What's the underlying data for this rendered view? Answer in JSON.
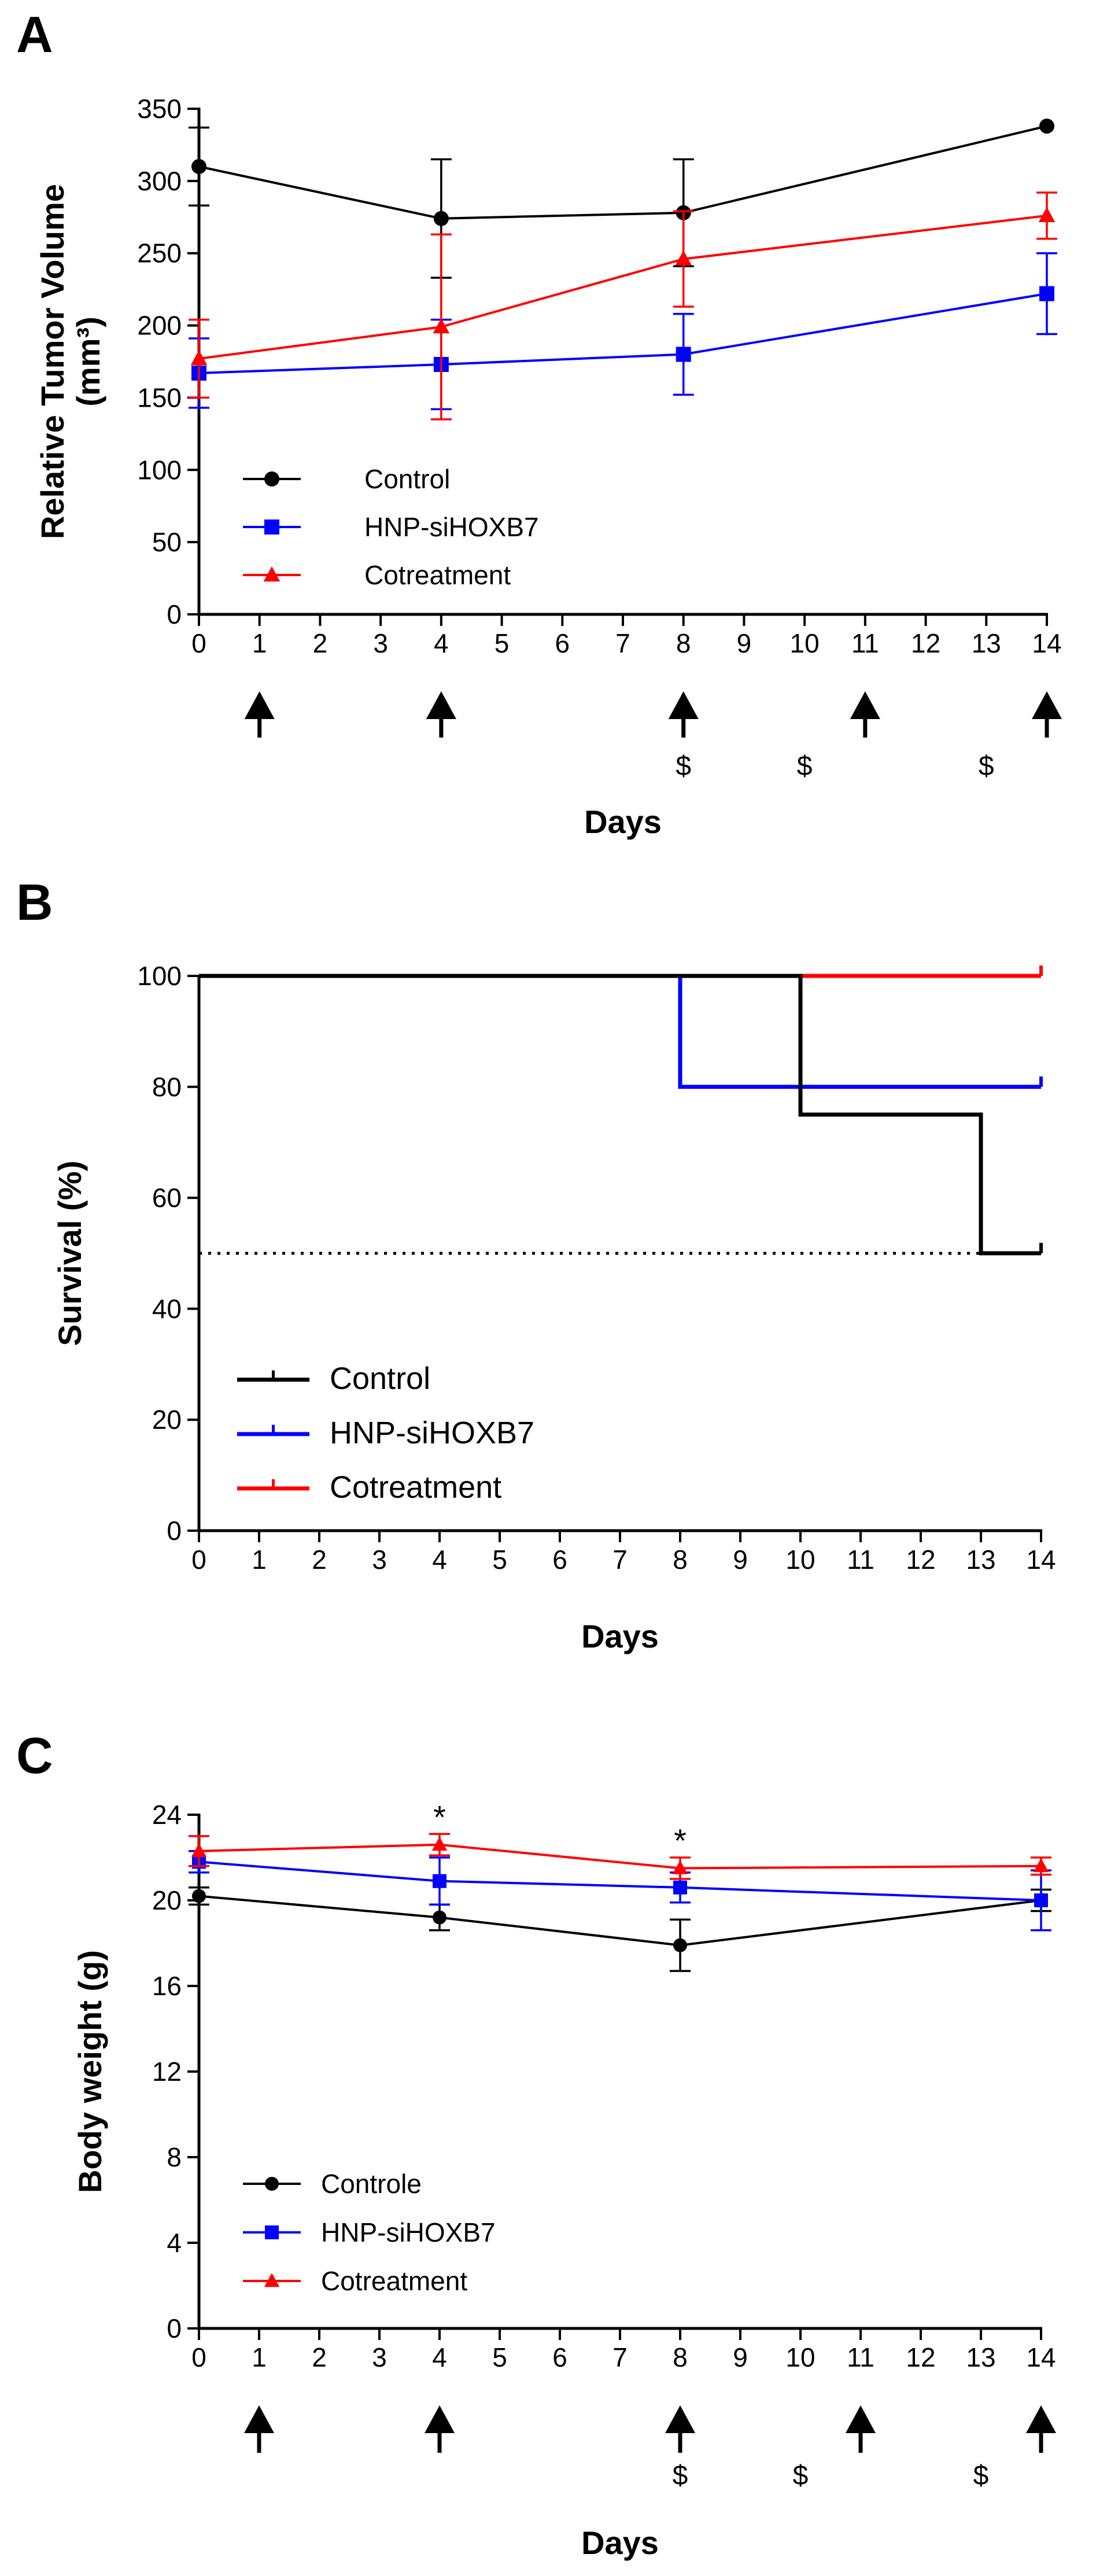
{
  "colors": {
    "control": "#000000",
    "hnp": "#0000ff",
    "cotreatment": "#ff0000"
  },
  "chart_data": [
    {
      "panel": "A",
      "type": "line",
      "title": "",
      "xlabel": "Days",
      "ylabel": [
        "Relative Tumor Volume",
        "(mm³)"
      ],
      "xlim": [
        0,
        14
      ],
      "ylim": [
        0,
        350
      ],
      "xticks": [
        0,
        1,
        2,
        3,
        4,
        5,
        6,
        7,
        8,
        9,
        10,
        11,
        12,
        13,
        14
      ],
      "yticks": [
        0,
        50,
        100,
        150,
        200,
        250,
        300,
        350
      ],
      "legend_position": "bottom-left",
      "series": [
        {
          "name": "Control",
          "color": "#000000",
          "marker": "circle",
          "x": [
            0,
            4,
            8,
            14
          ],
          "y": [
            310,
            274,
            278,
            338
          ],
          "err": [
            27,
            41,
            37,
            0
          ]
        },
        {
          "name": "HNP-siHOXB7",
          "color": "#0000ff",
          "marker": "square",
          "x": [
            0,
            4,
            8,
            14
          ],
          "y": [
            167,
            173,
            180,
            222
          ],
          "err": [
            24,
            31,
            28,
            28
          ]
        },
        {
          "name": "Cotreatment",
          "color": "#ff0000",
          "marker": "triangle",
          "x": [
            0,
            4,
            8,
            14
          ],
          "y": [
            177,
            199,
            246,
            276
          ],
          "err": [
            27,
            64,
            33,
            16
          ]
        }
      ],
      "arrows": [
        1,
        4,
        8,
        11,
        14
      ],
      "dollar_marks": [
        {
          "x": 8,
          "label": "$"
        },
        {
          "x": 10,
          "label": "$"
        },
        {
          "x": 13,
          "label": "$"
        }
      ]
    },
    {
      "panel": "B",
      "type": "line",
      "subtype": "kaplan-meier",
      "title": "",
      "xlabel": "Days",
      "ylabel": [
        "Survival (%)"
      ],
      "xlim": [
        0,
        14
      ],
      "ylim": [
        0,
        100
      ],
      "xticks": [
        0,
        1,
        2,
        3,
        4,
        5,
        6,
        7,
        8,
        9,
        10,
        11,
        12,
        13,
        14
      ],
      "yticks": [
        0,
        20,
        40,
        60,
        80,
        100
      ],
      "legend_position": "bottom-left",
      "reference_line": {
        "y": 50,
        "x_range": [
          0,
          14
        ],
        "style": "dotted"
      },
      "series": [
        {
          "name": "Control",
          "color": "#000000",
          "steps": [
            [
              0,
              100
            ],
            [
              10,
              100
            ],
            [
              10,
              75
            ],
            [
              13,
              75
            ],
            [
              13,
              50
            ],
            [
              14,
              50
            ]
          ]
        },
        {
          "name": "HNP-siHOXB7",
          "color": "#0000ff",
          "steps": [
            [
              0,
              100
            ],
            [
              8,
              100
            ],
            [
              8,
              80
            ],
            [
              14,
              80
            ]
          ]
        },
        {
          "name": "Cotreatment",
          "color": "#ff0000",
          "steps": [
            [
              0,
              100
            ],
            [
              14,
              100
            ]
          ]
        }
      ]
    },
    {
      "panel": "C",
      "type": "line",
      "title": "",
      "xlabel": "Days",
      "ylabel": [
        "Body weight (g)"
      ],
      "xlim": [
        0,
        14
      ],
      "ylim": [
        0,
        24
      ],
      "xticks": [
        0,
        1,
        2,
        3,
        4,
        5,
        6,
        7,
        8,
        9,
        10,
        11,
        12,
        13,
        14
      ],
      "yticks": [
        0,
        4,
        8,
        12,
        16,
        20,
        24
      ],
      "legend_position": "bottom-left",
      "series": [
        {
          "name": "Controle",
          "color": "#000000",
          "marker": "circle",
          "x": [
            0,
            4,
            8,
            14
          ],
          "y": [
            20.2,
            19.2,
            17.9,
            20.0
          ],
          "err": [
            0.4,
            0.6,
            1.2,
            0.5
          ]
        },
        {
          "name": "HNP-siHOXB7",
          "color": "#0000ff",
          "marker": "square",
          "x": [
            0,
            4,
            8,
            14
          ],
          "y": [
            21.8,
            20.9,
            20.6,
            20.0
          ],
          "err": [
            0.5,
            1.1,
            0.7,
            1.4
          ]
        },
        {
          "name": "Cotreatment",
          "color": "#ff0000",
          "marker": "triangle",
          "x": [
            0,
            4,
            8,
            14
          ],
          "y": [
            22.3,
            22.6,
            21.5,
            21.6
          ],
          "err": [
            0.7,
            0.5,
            0.5,
            0.4
          ]
        }
      ],
      "significance": [
        {
          "x": 4,
          "label": "*"
        },
        {
          "x": 8,
          "label": "*"
        }
      ],
      "arrows": [
        1,
        4,
        8,
        11,
        14
      ],
      "dollar_marks": [
        {
          "x": 8,
          "label": "$"
        },
        {
          "x": 10,
          "label": "$"
        },
        {
          "x": 13,
          "label": "$"
        }
      ]
    }
  ]
}
